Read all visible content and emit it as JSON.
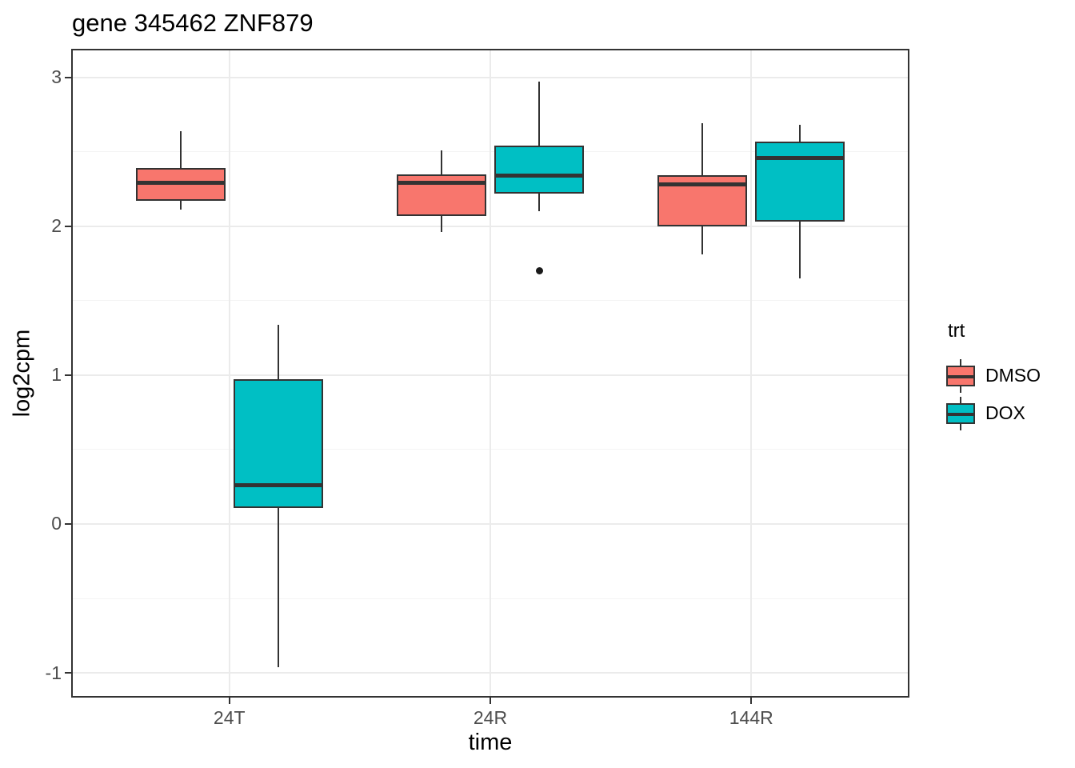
{
  "title": "gene 345462 ZNF879",
  "chart_data": {
    "type": "boxplot",
    "title": "gene 345462 ZNF879",
    "xlabel": "time",
    "ylabel": "log2cpm",
    "categories": [
      "24T",
      "24R",
      "144R"
    ],
    "yticks": [
      -1,
      0,
      1,
      2,
      3
    ],
    "yticks_minor": [
      -0.5,
      0.5,
      1.5,
      2.5
    ],
    "ylim": [
      -1.155,
      3.18
    ],
    "grid": "major+minor-horizontal, major-vertical-at-categories",
    "legend": {
      "title": "trt",
      "position": "right",
      "entries": [
        {
          "label": "DMSO",
          "color": "#F8766D"
        },
        {
          "label": "DOX",
          "color": "#00BFC4"
        }
      ]
    },
    "colors": {
      "dmso_fill": "#F8766D",
      "dox_fill": "#00BFC4",
      "box_line": "#333333",
      "grid_major": "#ebebeb",
      "grid_minor": "#f4f4f4",
      "tick_text": "#4d4d4d"
    },
    "series": [
      {
        "name": "DMSO",
        "color": "#F8766D",
        "boxes": [
          {
            "category": "24T",
            "whisker_low": 2.11,
            "q1": 2.17,
            "median": 2.29,
            "q3": 2.39,
            "whisker_high": 2.64,
            "outliers": []
          },
          {
            "category": "24R",
            "whisker_low": 1.96,
            "q1": 2.07,
            "median": 2.29,
            "q3": 2.35,
            "whisker_high": 2.51,
            "outliers": []
          },
          {
            "category": "144R",
            "whisker_low": 1.81,
            "q1": 2.0,
            "median": 2.28,
            "q3": 2.34,
            "whisker_high": 2.69,
            "outliers": []
          }
        ]
      },
      {
        "name": "DOX",
        "color": "#00BFC4",
        "boxes": [
          {
            "category": "24T",
            "whisker_low": -0.96,
            "q1": 0.11,
            "median": 0.26,
            "q3": 0.97,
            "whisker_high": 1.34,
            "outliers": []
          },
          {
            "category": "24R",
            "whisker_low": 2.1,
            "q1": 2.22,
            "median": 2.34,
            "q3": 2.54,
            "whisker_high": 2.97,
            "outliers": [
              1.7
            ]
          },
          {
            "category": "144R",
            "whisker_low": 1.65,
            "q1": 2.03,
            "median": 2.46,
            "q3": 2.57,
            "whisker_high": 2.68,
            "outliers": []
          }
        ]
      }
    ]
  }
}
